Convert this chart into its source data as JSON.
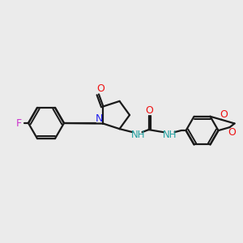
{
  "bg_color": "#ebebeb",
  "bond_color": "#1a1a1a",
  "N_color": "#2020ee",
  "O_color": "#ee1111",
  "F_color": "#cc33cc",
  "NH_color": "#20a0a0",
  "figsize": [
    3.0,
    3.0
  ],
  "dpi": 100,
  "xlim": [
    0,
    300
  ],
  "ylim": [
    0,
    300
  ]
}
